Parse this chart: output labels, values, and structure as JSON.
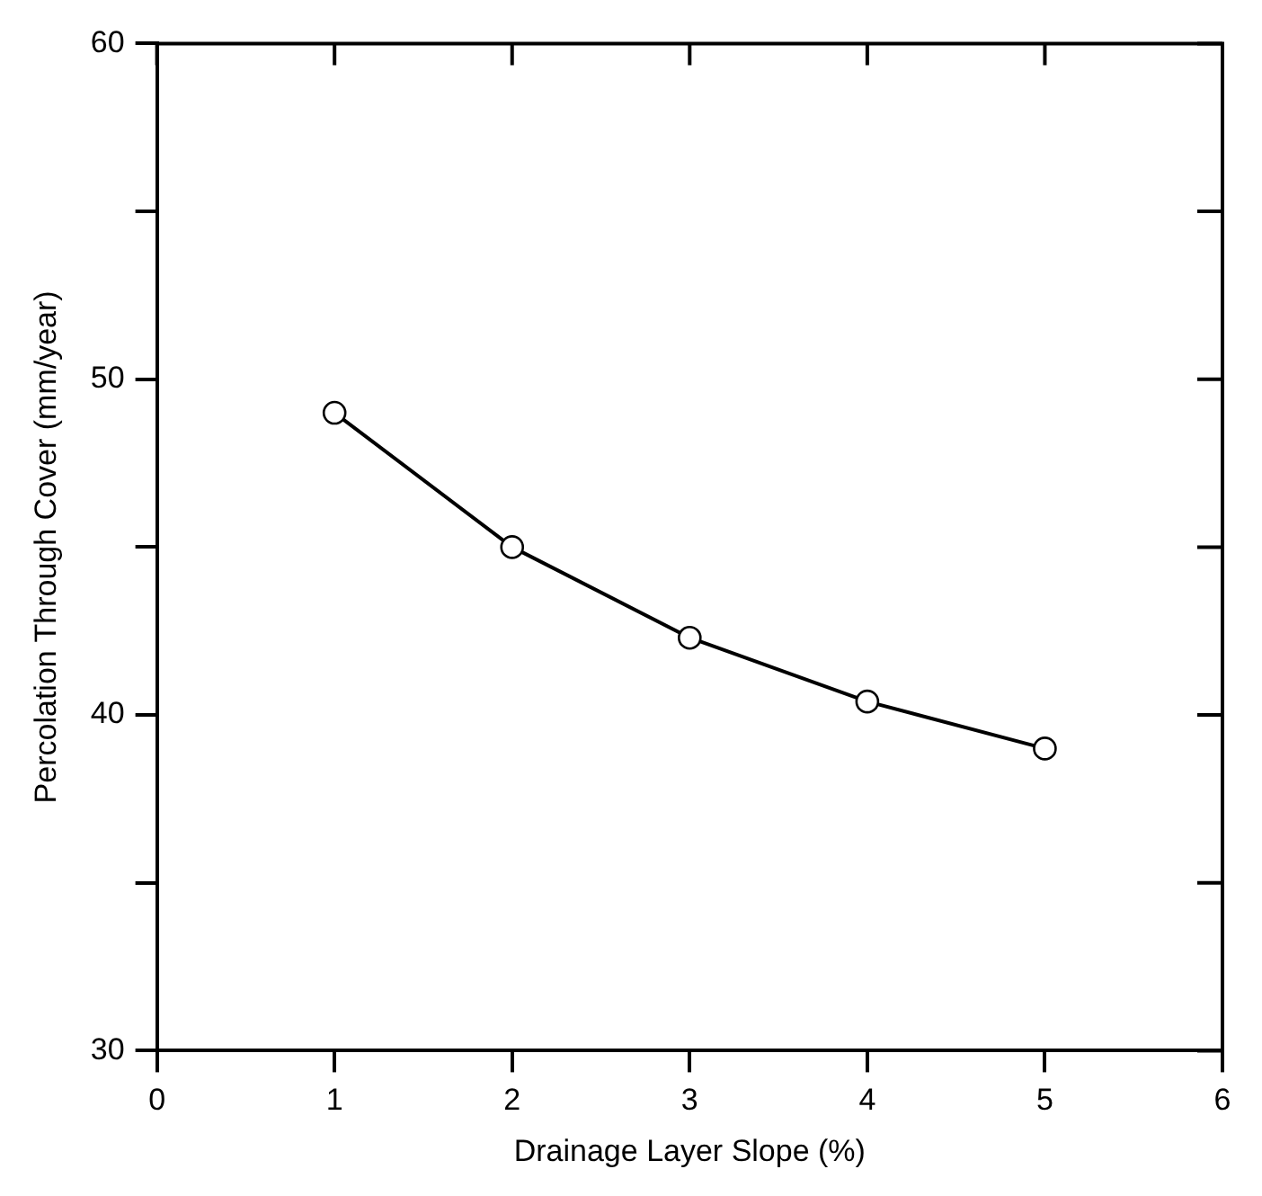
{
  "chart_data": {
    "type": "line",
    "xlabel": "Drainage Layer Slope (%)",
    "ylabel": "Percolation Through Cover (mm/year)",
    "x": [
      1,
      2,
      3,
      4,
      5
    ],
    "series": [
      {
        "color": "#000000",
        "values": [
          49,
          45,
          42.3,
          40.4,
          39
        ]
      }
    ],
    "xlim": [
      0,
      6
    ],
    "xticks": [
      0,
      1,
      2,
      3,
      4,
      5,
      6
    ],
    "ylim": [
      30,
      60
    ],
    "yticks": [
      30,
      {
        "value": 35,
        "label": null
      },
      40,
      {
        "value": 45,
        "label": null
      },
      50,
      {
        "value": 55,
        "label": null
      },
      60
    ],
    "grid": false,
    "legend": false,
    "marker": "circle",
    "line_style": "solid"
  }
}
